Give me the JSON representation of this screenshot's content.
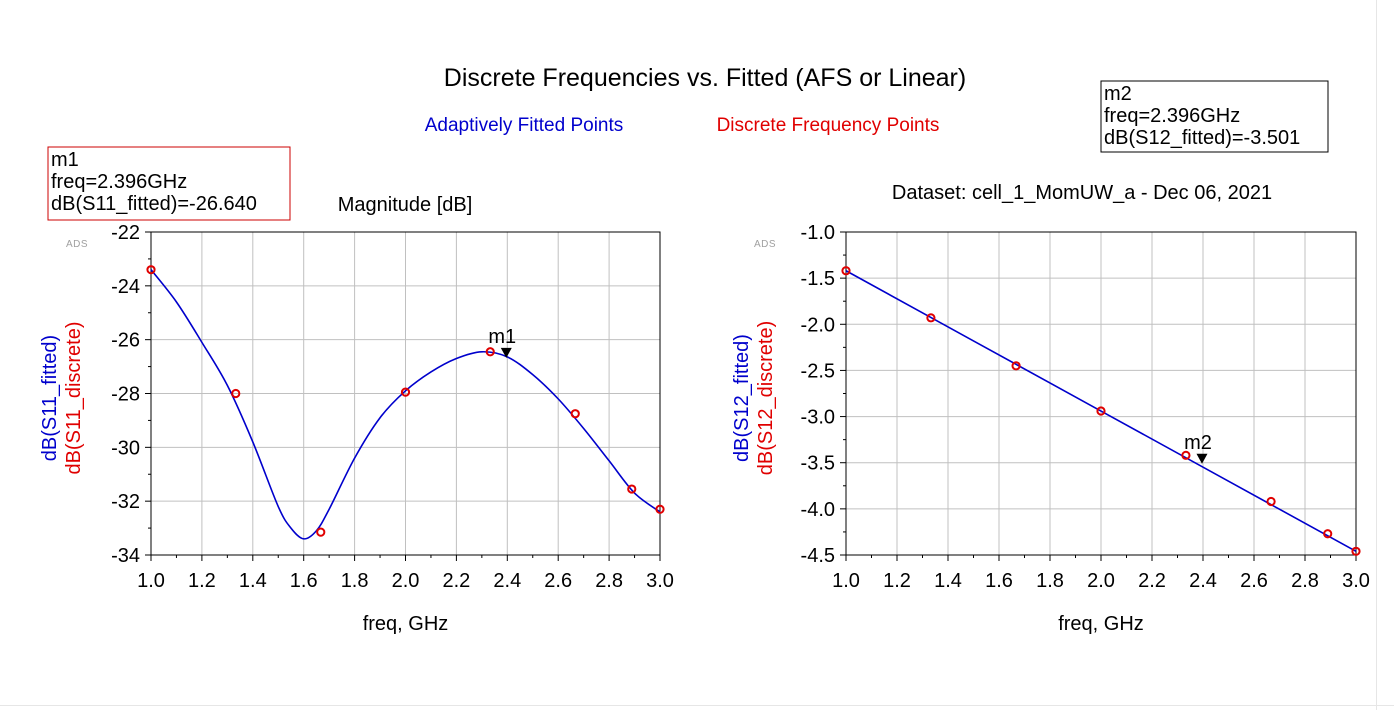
{
  "page": {
    "title": "Discrete Frequencies vs. Fitted (AFS or Linear)",
    "legend_fitted": "Adaptively Fitted Points",
    "legend_discrete": "Discrete Frequency Points"
  },
  "colors": {
    "fitted": "#0000cc",
    "discrete": "#e00000",
    "grid": "#c0c0c0",
    "marker_box_m1": "#cc0000",
    "marker_box_m2": "#000000"
  },
  "chart_data": [
    {
      "type": "line",
      "title": "Magnitude [dB]",
      "watermark": "ADS",
      "xlabel": "freq, GHz",
      "ylabel_fitted": "dB(S11_fitted)",
      "ylabel_discrete": "dB(S11_discrete)",
      "xlim": [
        1.0,
        3.0
      ],
      "ylim": [
        -34,
        -22
      ],
      "xticks": [
        "1.0",
        "1.2",
        "1.4",
        "1.6",
        "1.8",
        "2.0",
        "2.2",
        "2.4",
        "2.6",
        "2.8",
        "3.0"
      ],
      "yticks": [
        "-22",
        "-24",
        "-26",
        "-28",
        "-30",
        "-32",
        "-34"
      ],
      "grid": true,
      "series": [
        {
          "name": "dB(S11_fitted)",
          "x": [
            1.0,
            1.1,
            1.2,
            1.3,
            1.4,
            1.5,
            1.55,
            1.6,
            1.65,
            1.7,
            1.8,
            1.9,
            2.0,
            2.1,
            2.2,
            2.3,
            2.4,
            2.5,
            2.6,
            2.7,
            2.8,
            2.9,
            3.0
          ],
          "y": [
            -23.4,
            -24.6,
            -26.1,
            -27.7,
            -29.8,
            -32.2,
            -33.0,
            -33.4,
            -33.1,
            -32.3,
            -30.4,
            -28.9,
            -27.9,
            -27.2,
            -26.7,
            -26.45,
            -26.64,
            -27.3,
            -28.2,
            -29.3,
            -30.5,
            -31.7,
            -32.4
          ]
        },
        {
          "name": "dB(S11_discrete)",
          "x": [
            1.0,
            1.333,
            1.667,
            2.0,
            2.333,
            2.667,
            2.889,
            3.0
          ],
          "y": [
            -23.4,
            -28.0,
            -33.15,
            -27.95,
            -26.45,
            -28.75,
            -31.55,
            -32.3
          ]
        }
      ],
      "marker": {
        "name": "m1",
        "x": 2.396,
        "y": -26.64,
        "lines": [
          "m1",
          "freq=2.396GHz",
          "dB(S11_fitted)=-26.640"
        ]
      }
    },
    {
      "type": "line",
      "title": "Dataset: cell_1_MomUW_a - Dec 06, 2021",
      "watermark": "ADS",
      "xlabel": "freq, GHz",
      "ylabel_fitted": "dB(S12_fitted)",
      "ylabel_discrete": "dB(S12_discrete)",
      "xlim": [
        1.0,
        3.0
      ],
      "ylim": [
        -4.5,
        -1.0
      ],
      "xticks": [
        "1.0",
        "1.2",
        "1.4",
        "1.6",
        "1.8",
        "2.0",
        "2.2",
        "2.4",
        "2.6",
        "2.8",
        "3.0"
      ],
      "yticks": [
        "-1.0",
        "-1.5",
        "-2.0",
        "-2.5",
        "-3.0",
        "-3.5",
        "-4.0",
        "-4.5"
      ],
      "grid": true,
      "series": [
        {
          "name": "dB(S12_fitted)",
          "x": [
            1.0,
            1.5,
            2.0,
            2.5,
            3.0
          ],
          "y": [
            -1.42,
            -2.18,
            -2.94,
            -3.7,
            -4.46
          ]
        },
        {
          "name": "dB(S12_discrete)",
          "x": [
            1.0,
            1.333,
            1.667,
            2.0,
            2.333,
            2.667,
            2.889,
            3.0
          ],
          "y": [
            -1.42,
            -1.93,
            -2.45,
            -2.94,
            -3.42,
            -3.92,
            -4.27,
            -4.46
          ]
        }
      ],
      "marker": {
        "name": "m2",
        "x": 2.396,
        "y": -3.501,
        "lines": [
          "m2",
          "freq=2.396GHz",
          "dB(S12_fitted)=-3.501"
        ]
      }
    }
  ]
}
